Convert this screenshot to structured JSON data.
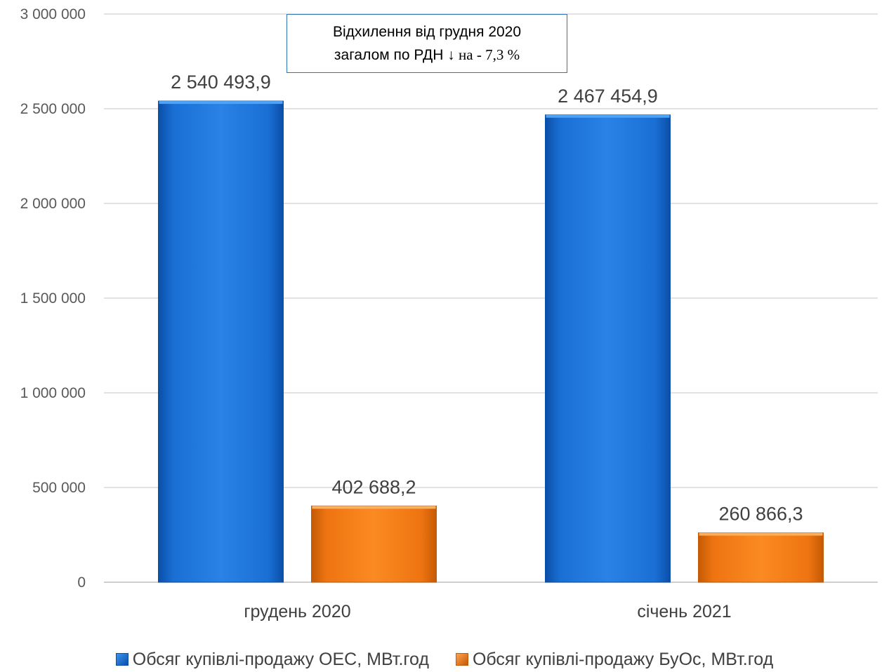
{
  "chart_data": {
    "type": "bar",
    "title": "",
    "xlabel": "",
    "ylabel": "",
    "categories": [
      "грудень 2020",
      "січень 2021"
    ],
    "series": [
      {
        "name": "Обсяг купівлі-продажу ОЕС, МВт.год",
        "values": [
          2540493.9,
          2467454.9
        ],
        "labels": [
          "2 540 493,9",
          "2 467 454,9"
        ],
        "color": "#1f6fd0"
      },
      {
        "name": "Обсяг купівлі-продажу БуОс, МВт.год",
        "values": [
          402688.2,
          260866.3
        ],
        "labels": [
          "402 688,2",
          "260 866,3"
        ],
        "color": "#f07a12"
      }
    ],
    "ylim": [
      0,
      3000000
    ],
    "yticks": [
      0,
      500000,
      1000000,
      1500000,
      2000000,
      2500000,
      3000000
    ],
    "ytick_labels": [
      "0",
      "500 000",
      "1 000 000",
      "1 500 000",
      "2 000 000",
      "2 500 000",
      "3 000 000"
    ],
    "grid": true,
    "legend": "bottom"
  },
  "annotation": {
    "line1": "Відхилення від грудня 2020",
    "line2_prefix": "загалом по РДН ",
    "line2_arrow": "↓",
    "line2_suffix": " на - 7,3 %"
  }
}
